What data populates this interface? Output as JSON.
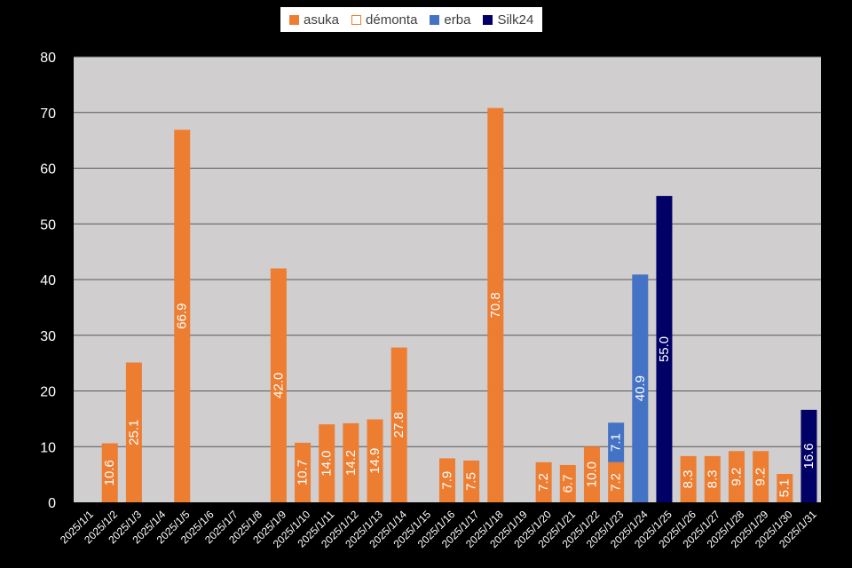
{
  "colors": {
    "asuka": "#ED7D31",
    "demonta": "#ED7D31",
    "erba": "#4472C4",
    "silk24": "#000066",
    "plot_bg": "#D0CECE",
    "page_bg": "#000000",
    "gridline": "#595959"
  },
  "chart_data": {
    "type": "bar",
    "stacked": true,
    "grid": true,
    "legend_placement": "top-center",
    "ylim": [
      0,
      80
    ],
    "yticks": [
      "0",
      "10",
      "20",
      "30",
      "40",
      "50",
      "60",
      "70",
      "80"
    ],
    "xlabel": "",
    "ylabel": "",
    "categories": [
      "2025/1/1",
      "2025/1/2",
      "2025/1/3",
      "2025/1/4",
      "2025/1/5",
      "2025/1/6",
      "2025/1/7",
      "2025/1/8",
      "2025/1/9",
      "2025/1/10",
      "2025/1/11",
      "2025/1/12",
      "2025/1/13",
      "2025/1/14",
      "2025/1/15",
      "2025/1/16",
      "2025/1/17",
      "2025/1/18",
      "2025/1/19",
      "2025/1/20",
      "2025/1/21",
      "2025/1/22",
      "2025/1/23",
      "2025/1/24",
      "2025/1/25",
      "2025/1/26",
      "2025/1/27",
      "2025/1/28",
      "2025/1/29",
      "2025/1/30",
      "2025/1/31"
    ],
    "series": [
      {
        "name": "asuka",
        "style": "filled",
        "color": "#ED7D31",
        "values": [
          null,
          10.6,
          25.1,
          null,
          66.9,
          null,
          null,
          null,
          42.0,
          10.7,
          14.0,
          14.2,
          14.9,
          27.8,
          null,
          7.9,
          7.5,
          70.8,
          null,
          7.2,
          6.7,
          10.0,
          7.2,
          null,
          null,
          8.3,
          8.3,
          9.2,
          9.2,
          5.1,
          null
        ],
        "labels": [
          null,
          "10.6",
          "25.1",
          null,
          "66.9",
          null,
          null,
          null,
          "42.0",
          "10.7",
          "14.0",
          "14.2",
          "14.9",
          "27.8",
          null,
          "7.9",
          "7.5",
          "70.8",
          null,
          "7.2",
          "6.7",
          "10.0",
          "7.2",
          null,
          null,
          "8.3",
          "8.3",
          "9.2",
          "9.2",
          "5.1",
          null
        ]
      },
      {
        "name": "démonta",
        "style": "outline",
        "color": "#ED7D31",
        "values": [
          null,
          null,
          null,
          null,
          null,
          null,
          null,
          null,
          null,
          null,
          null,
          null,
          null,
          null,
          null,
          null,
          null,
          null,
          null,
          null,
          null,
          null,
          null,
          null,
          null,
          null,
          null,
          null,
          null,
          null,
          null
        ],
        "labels": [
          null,
          null,
          null,
          null,
          null,
          null,
          null,
          null,
          null,
          null,
          null,
          null,
          null,
          null,
          null,
          null,
          null,
          null,
          null,
          null,
          null,
          null,
          null,
          null,
          null,
          null,
          null,
          null,
          null,
          null,
          null
        ]
      },
      {
        "name": "erba",
        "style": "filled",
        "color": "#4472C4",
        "values": [
          null,
          null,
          null,
          null,
          null,
          null,
          null,
          null,
          null,
          null,
          null,
          null,
          null,
          null,
          null,
          null,
          null,
          null,
          null,
          null,
          null,
          null,
          7.1,
          40.9,
          null,
          null,
          null,
          null,
          null,
          null,
          null
        ],
        "labels": [
          null,
          null,
          null,
          null,
          null,
          null,
          null,
          null,
          null,
          null,
          null,
          null,
          null,
          null,
          null,
          null,
          null,
          null,
          null,
          null,
          null,
          null,
          "7.1",
          "40.9",
          null,
          null,
          null,
          null,
          null,
          null,
          null
        ]
      },
      {
        "name": "Silk24",
        "style": "filled",
        "color": "#000066",
        "values": [
          null,
          null,
          null,
          null,
          null,
          null,
          null,
          null,
          null,
          null,
          null,
          null,
          null,
          null,
          null,
          null,
          null,
          null,
          null,
          null,
          null,
          null,
          null,
          null,
          55.0,
          null,
          null,
          null,
          null,
          null,
          16.6
        ],
        "labels": [
          null,
          null,
          null,
          null,
          null,
          null,
          null,
          null,
          null,
          null,
          null,
          null,
          null,
          null,
          null,
          null,
          null,
          null,
          null,
          null,
          null,
          null,
          null,
          null,
          "55.0",
          null,
          null,
          null,
          null,
          null,
          "16.6"
        ]
      }
    ]
  }
}
